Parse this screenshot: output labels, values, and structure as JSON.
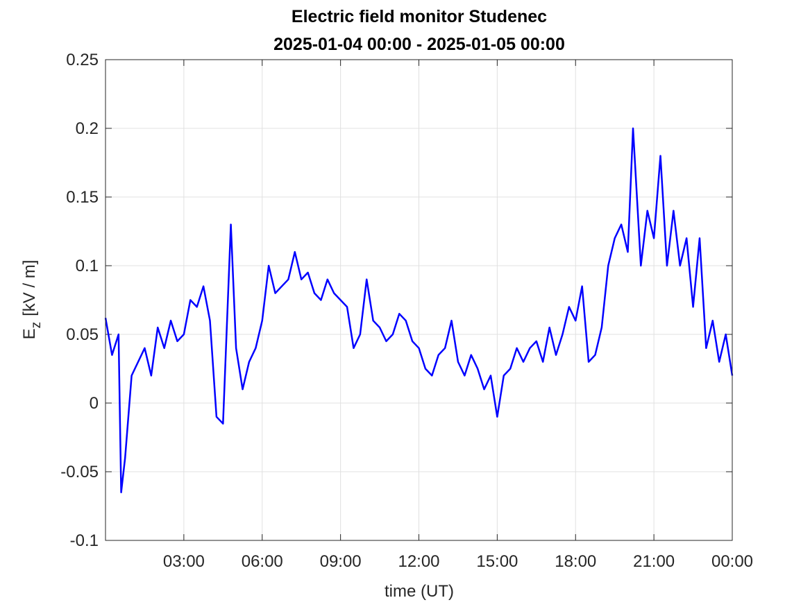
{
  "chart_data": {
    "type": "line",
    "title": "Electric field monitor Studenec",
    "subtitle": "2025-01-04 00:00 - 2025-01-05 00:00",
    "xlabel": "time (UT)",
    "ylabel": {
      "main": "E",
      "sub": "z",
      "rest": "[kV / m]"
    },
    "xlim": [
      0,
      24
    ],
    "xticks": [
      {
        "value": 3,
        "label": "03:00"
      },
      {
        "value": 6,
        "label": "06:00"
      },
      {
        "value": 9,
        "label": "09:00"
      },
      {
        "value": 12,
        "label": "12:00"
      },
      {
        "value": 15,
        "label": "15:00"
      },
      {
        "value": 18,
        "label": "18:00"
      },
      {
        "value": 21,
        "label": "21:00"
      },
      {
        "value": 24,
        "label": "00:00"
      }
    ],
    "ylim": [
      -0.1,
      0.25
    ],
    "yticks": [
      -0.1,
      -0.05,
      0,
      0.05,
      0.1,
      0.15,
      0.2,
      0.25
    ],
    "grid": true,
    "x": [
      0,
      0.25,
      0.5,
      0.6,
      0.75,
      1,
      1.25,
      1.5,
      1.75,
      2,
      2.25,
      2.5,
      2.75,
      3,
      3.25,
      3.5,
      3.75,
      4,
      4.25,
      4.5,
      4.8,
      5,
      5.25,
      5.5,
      5.75,
      6,
      6.25,
      6.5,
      6.75,
      7,
      7.25,
      7.5,
      7.75,
      8,
      8.25,
      8.5,
      8.75,
      9,
      9.25,
      9.5,
      9.75,
      10,
      10.25,
      10.5,
      10.75,
      11,
      11.25,
      11.5,
      11.75,
      12,
      12.25,
      12.5,
      12.75,
      13,
      13.25,
      13.5,
      13.75,
      14,
      14.25,
      14.5,
      14.75,
      15,
      15.25,
      15.5,
      15.75,
      16,
      16.25,
      16.5,
      16.75,
      17,
      17.25,
      17.5,
      17.75,
      18,
      18.25,
      18.5,
      18.75,
      19,
      19.25,
      19.5,
      19.75,
      20,
      20.2,
      20.5,
      20.75,
      21,
      21.25,
      21.5,
      21.75,
      22,
      22.25,
      22.5,
      22.75,
      23,
      23.25,
      23.5,
      23.75,
      24
    ],
    "series": [
      {
        "name": "Ez",
        "color": "#0000ff",
        "values": [
          0.062,
          0.035,
          0.05,
          -0.065,
          -0.04,
          0.02,
          0.03,
          0.04,
          0.02,
          0.055,
          0.04,
          0.06,
          0.045,
          0.05,
          0.075,
          0.07,
          0.085,
          0.06,
          -0.01,
          -0.015,
          0.13,
          0.04,
          0.01,
          0.03,
          0.04,
          0.06,
          0.1,
          0.08,
          0.085,
          0.09,
          0.11,
          0.09,
          0.095,
          0.08,
          0.075,
          0.09,
          0.08,
          0.075,
          0.07,
          0.04,
          0.05,
          0.09,
          0.06,
          0.055,
          0.045,
          0.05,
          0.065,
          0.06,
          0.045,
          0.04,
          0.025,
          0.02,
          0.035,
          0.04,
          0.06,
          0.03,
          0.02,
          0.035,
          0.025,
          0.01,
          0.02,
          -0.01,
          0.02,
          0.025,
          0.04,
          0.03,
          0.04,
          0.045,
          0.03,
          0.055,
          0.035,
          0.05,
          0.07,
          0.06,
          0.085,
          0.03,
          0.035,
          0.055,
          0.1,
          0.12,
          0.13,
          0.11,
          0.2,
          0.1,
          0.14,
          0.12,
          0.18,
          0.1,
          0.14,
          0.1,
          0.12,
          0.07,
          0.12,
          0.04,
          0.06,
          0.03,
          0.05,
          0.02
        ]
      }
    ]
  }
}
